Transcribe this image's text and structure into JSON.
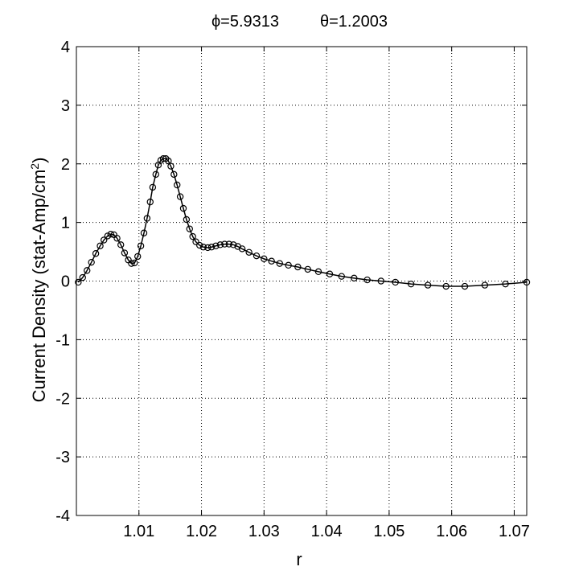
{
  "chart_data": {
    "type": "line",
    "title": {
      "phi_label": "ϕ=5.9313",
      "theta_label": "θ=1.2003"
    },
    "xlabel": "r",
    "ylabel_main": "Current Density (stat-Amp/cm",
    "ylabel_sup": "2",
    "ylabel_close": ")",
    "xlim": [
      1.0,
      1.072
    ],
    "ylim": [
      -4,
      4
    ],
    "xticks": [
      1.01,
      1.02,
      1.03,
      1.04,
      1.05,
      1.06,
      1.07
    ],
    "xtick_labels": [
      "1.01",
      "1.02",
      "1.03",
      "1.04",
      "1.05",
      "1.06",
      "1.07"
    ],
    "yticks": [
      -4,
      -3,
      -2,
      -1,
      0,
      1,
      2,
      3,
      4
    ],
    "ytick_labels": [
      "-4",
      "-3",
      "-2",
      "-1",
      "0",
      "1",
      "2",
      "3",
      "4"
    ],
    "grid": true,
    "marker": "circle",
    "line_color": "#000000",
    "series": [
      {
        "x": [
          1.0003,
          1.001,
          1.0017,
          1.0024,
          1.0031,
          1.0038,
          1.0044,
          1.005,
          1.0055,
          1.006,
          1.0065,
          1.0071,
          1.0077,
          1.0083,
          1.0088,
          1.0093,
          1.0098,
          1.0103,
          1.0108,
          1.0113,
          1.0118,
          1.0122,
          1.0127,
          1.0131,
          1.0135,
          1.0139,
          1.0143,
          1.0147,
          1.0151,
          1.0156,
          1.0161,
          1.0166,
          1.0171,
          1.0176,
          1.0181,
          1.0186,
          1.0191,
          1.0197,
          1.0203,
          1.021,
          1.0216,
          1.0223,
          1.023,
          1.0237,
          1.0244,
          1.0251,
          1.0258,
          1.0265,
          1.0276,
          1.0288,
          1.03,
          1.0312,
          1.0325,
          1.0339,
          1.0354,
          1.037,
          1.0387,
          1.0405,
          1.0424,
          1.0444,
          1.0465,
          1.0487,
          1.051,
          1.0535,
          1.0562,
          1.0591,
          1.0621,
          1.0653,
          1.0686,
          1.072
        ],
        "y": [
          -0.02,
          0.06,
          0.18,
          0.32,
          0.47,
          0.6,
          0.7,
          0.77,
          0.8,
          0.79,
          0.73,
          0.62,
          0.48,
          0.36,
          0.3,
          0.31,
          0.42,
          0.6,
          0.82,
          1.07,
          1.35,
          1.6,
          1.82,
          1.98,
          2.06,
          2.09,
          2.09,
          2.05,
          1.96,
          1.82,
          1.64,
          1.44,
          1.24,
          1.05,
          0.89,
          0.76,
          0.67,
          0.61,
          0.58,
          0.57,
          0.58,
          0.6,
          0.62,
          0.63,
          0.63,
          0.62,
          0.59,
          0.55,
          0.49,
          0.43,
          0.38,
          0.34,
          0.3,
          0.27,
          0.24,
          0.2,
          0.16,
          0.12,
          0.08,
          0.05,
          0.02,
          0.0,
          -0.02,
          -0.05,
          -0.07,
          -0.09,
          -0.09,
          -0.07,
          -0.05,
          -0.02
        ]
      }
    ]
  }
}
